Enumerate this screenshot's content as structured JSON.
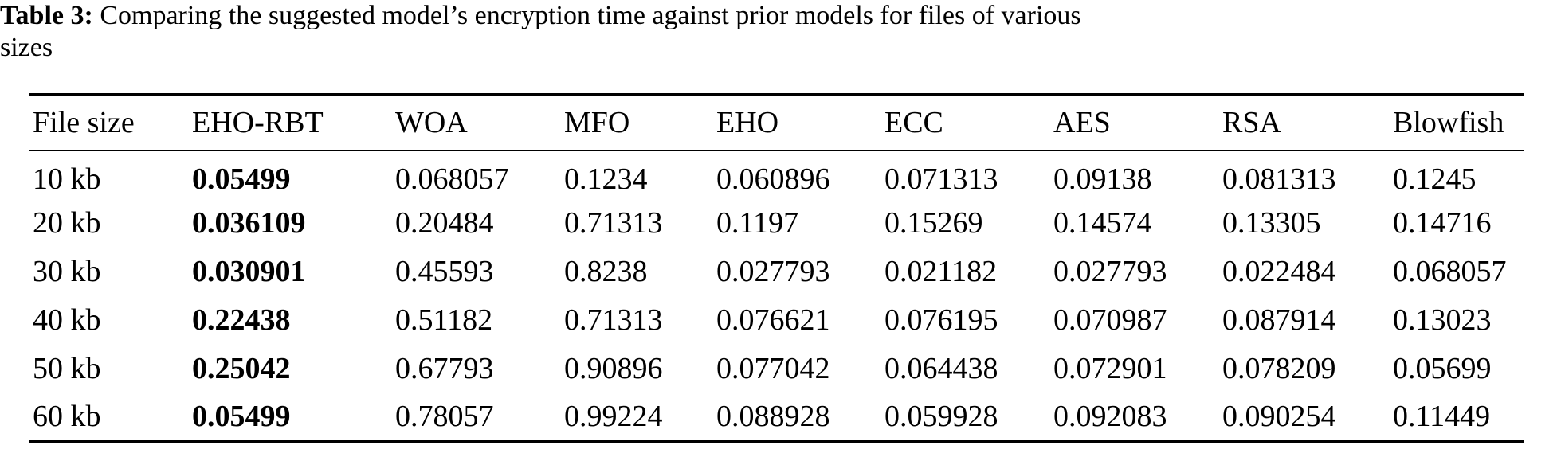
{
  "caption": {
    "label": "Table 3:",
    "line1": "Comparing the suggested model’s encryption time against prior models for files of various",
    "line2": "sizes"
  },
  "table": {
    "headers": [
      "File size",
      "EHO-RBT",
      "WOA",
      "MFO",
      "EHO",
      "ECC",
      "AES",
      "RSA",
      "Blowfish"
    ],
    "rows": [
      [
        "10 kb",
        "0.05499",
        "0.068057",
        "0.1234",
        "0.060896",
        "0.071313",
        "0.09138",
        "0.081313",
        "0.1245"
      ],
      [
        "20 kb",
        "0.036109",
        "0.20484",
        "0.71313",
        "0.1197",
        "0.15269",
        "0.14574",
        "0.13305",
        "0.14716"
      ],
      [
        "30 kb",
        "0.030901",
        "0.45593",
        "0.8238",
        "0.027793",
        "0.021182",
        "0.027793",
        "0.022484",
        "0.068057"
      ],
      [
        "40 kb",
        "0.22438",
        "0.51182",
        "0.71313",
        "0.076621",
        "0.076195",
        "0.070987",
        "0.087914",
        "0.13023"
      ],
      [
        "50 kb",
        "0.25042",
        "0.67793",
        "0.90896",
        "0.077042",
        "0.064438",
        "0.072901",
        "0.078209",
        "0.05699"
      ],
      [
        "60 kb",
        "0.05499",
        "0.78057",
        "0.99224",
        "0.088928",
        "0.059928",
        "0.092083",
        "0.090254",
        "0.11449"
      ]
    ],
    "bold_column": "EHO-RBT"
  }
}
